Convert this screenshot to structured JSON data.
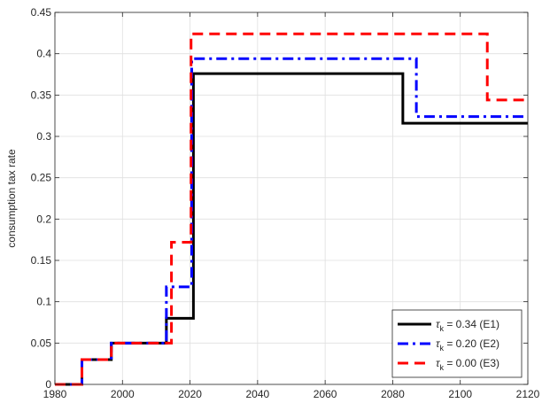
{
  "chart_data": {
    "type": "line",
    "title": "",
    "xlabel": "",
    "ylabel": "consumption tax rate",
    "xlim": [
      1980,
      2120
    ],
    "ylim": [
      0,
      0.45
    ],
    "x_ticks": [
      1980,
      2000,
      2020,
      2040,
      2060,
      2080,
      2100,
      2120
    ],
    "y_ticks": [
      0,
      0.05,
      0.1,
      0.15,
      0.2,
      0.25,
      0.3,
      0.35,
      0.4,
      0.45
    ],
    "x_tick_labels": [
      "1980",
      "2000",
      "2020",
      "2040",
      "2060",
      "2080",
      "2100",
      "2120"
    ],
    "y_tick_labels": [
      "0",
      "0.05",
      "0.1",
      "0.15",
      "0.2",
      "0.25",
      "0.3",
      "0.35",
      "0.4",
      "0.45"
    ],
    "grid": true,
    "legend_position": "bottom-right",
    "series": [
      {
        "name": "= 0.34 (E1)",
        "symbol": "τ",
        "subscript": "k",
        "color": "#000000",
        "dash": "solid",
        "x": [
          1980,
          1988,
          1988,
          1996.7,
          1996.7,
          2013,
          2013,
          2020,
          2020,
          2021,
          2021,
          2083,
          2083,
          2120
        ],
        "y": [
          0,
          0,
          0.03,
          0.03,
          0.05,
          0.05,
          0.08,
          0.08,
          0.08,
          0.08,
          0.376,
          0.376,
          0.316,
          0.316
        ]
      },
      {
        "name": "= 0.20 (E2)",
        "symbol": "τ",
        "subscript": "k",
        "color": "#0000ff",
        "dash": "dashdot",
        "x": [
          1980,
          1988,
          1988,
          1996.7,
          1996.7,
          2013,
          2013,
          2020.5,
          2020.5,
          2087,
          2087,
          2120
        ],
        "y": [
          0,
          0,
          0.03,
          0.03,
          0.05,
          0.05,
          0.118,
          0.118,
          0.394,
          0.394,
          0.324,
          0.324
        ]
      },
      {
        "name": "= 0.00 (E3)",
        "symbol": "τ",
        "subscript": "k",
        "color": "#ff0000",
        "dash": "dashed",
        "x": [
          1980,
          1988,
          1988,
          1996.7,
          1996.7,
          2014.5,
          2014.5,
          2016,
          2016,
          2020.3,
          2020.3,
          2108,
          2108,
          2120
        ],
        "y": [
          0,
          0,
          0.03,
          0.03,
          0.05,
          0.05,
          0.172,
          0.172,
          0.172,
          0.172,
          0.424,
          0.424,
          0.344,
          0.344
        ]
      }
    ]
  }
}
